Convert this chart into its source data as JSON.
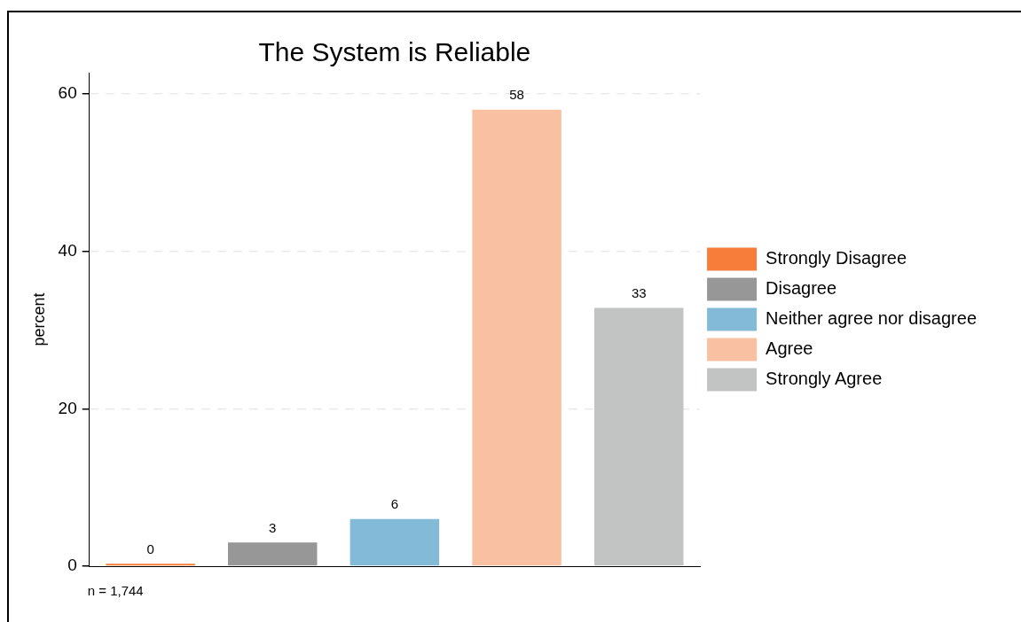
{
  "chart_data": {
    "type": "bar",
    "title": "The System is Reliable",
    "ylabel": "percent",
    "categories": [
      null,
      null,
      null,
      null,
      null
    ],
    "series": [
      {
        "name": "Strongly Disagree",
        "color": "#f67d3a",
        "values": [
          0.3,
          null,
          null,
          null,
          null
        ],
        "value_labels": [
          "0",
          null,
          null,
          null,
          null
        ]
      },
      {
        "name": "Disagree",
        "color": "#979798",
        "values": [
          null,
          3,
          null,
          null,
          null
        ],
        "value_labels": [
          null,
          "3",
          null,
          null,
          null
        ]
      },
      {
        "name": "Neither agree nor disagree",
        "color": "#83bad7",
        "values": [
          null,
          null,
          6,
          null,
          null
        ],
        "value_labels": [
          null,
          null,
          "6",
          null,
          null
        ]
      },
      {
        "name": "Agree",
        "color": "#f9c0a1",
        "values": [
          null,
          null,
          null,
          58,
          null
        ],
        "value_labels": [
          null,
          null,
          null,
          "58",
          null
        ]
      },
      {
        "name": "Strongly Agree",
        "color": "#c2c3c3",
        "values": [
          null,
          null,
          null,
          null,
          32.8
        ],
        "value_labels": [
          null,
          null,
          null,
          null,
          "33"
        ]
      }
    ],
    "ylim": [
      0,
      62.7
    ],
    "yticks": [
      0,
      20,
      40,
      60
    ],
    "grid": "y",
    "legend": "right",
    "annotations": [
      "n = 1,744"
    ]
  }
}
